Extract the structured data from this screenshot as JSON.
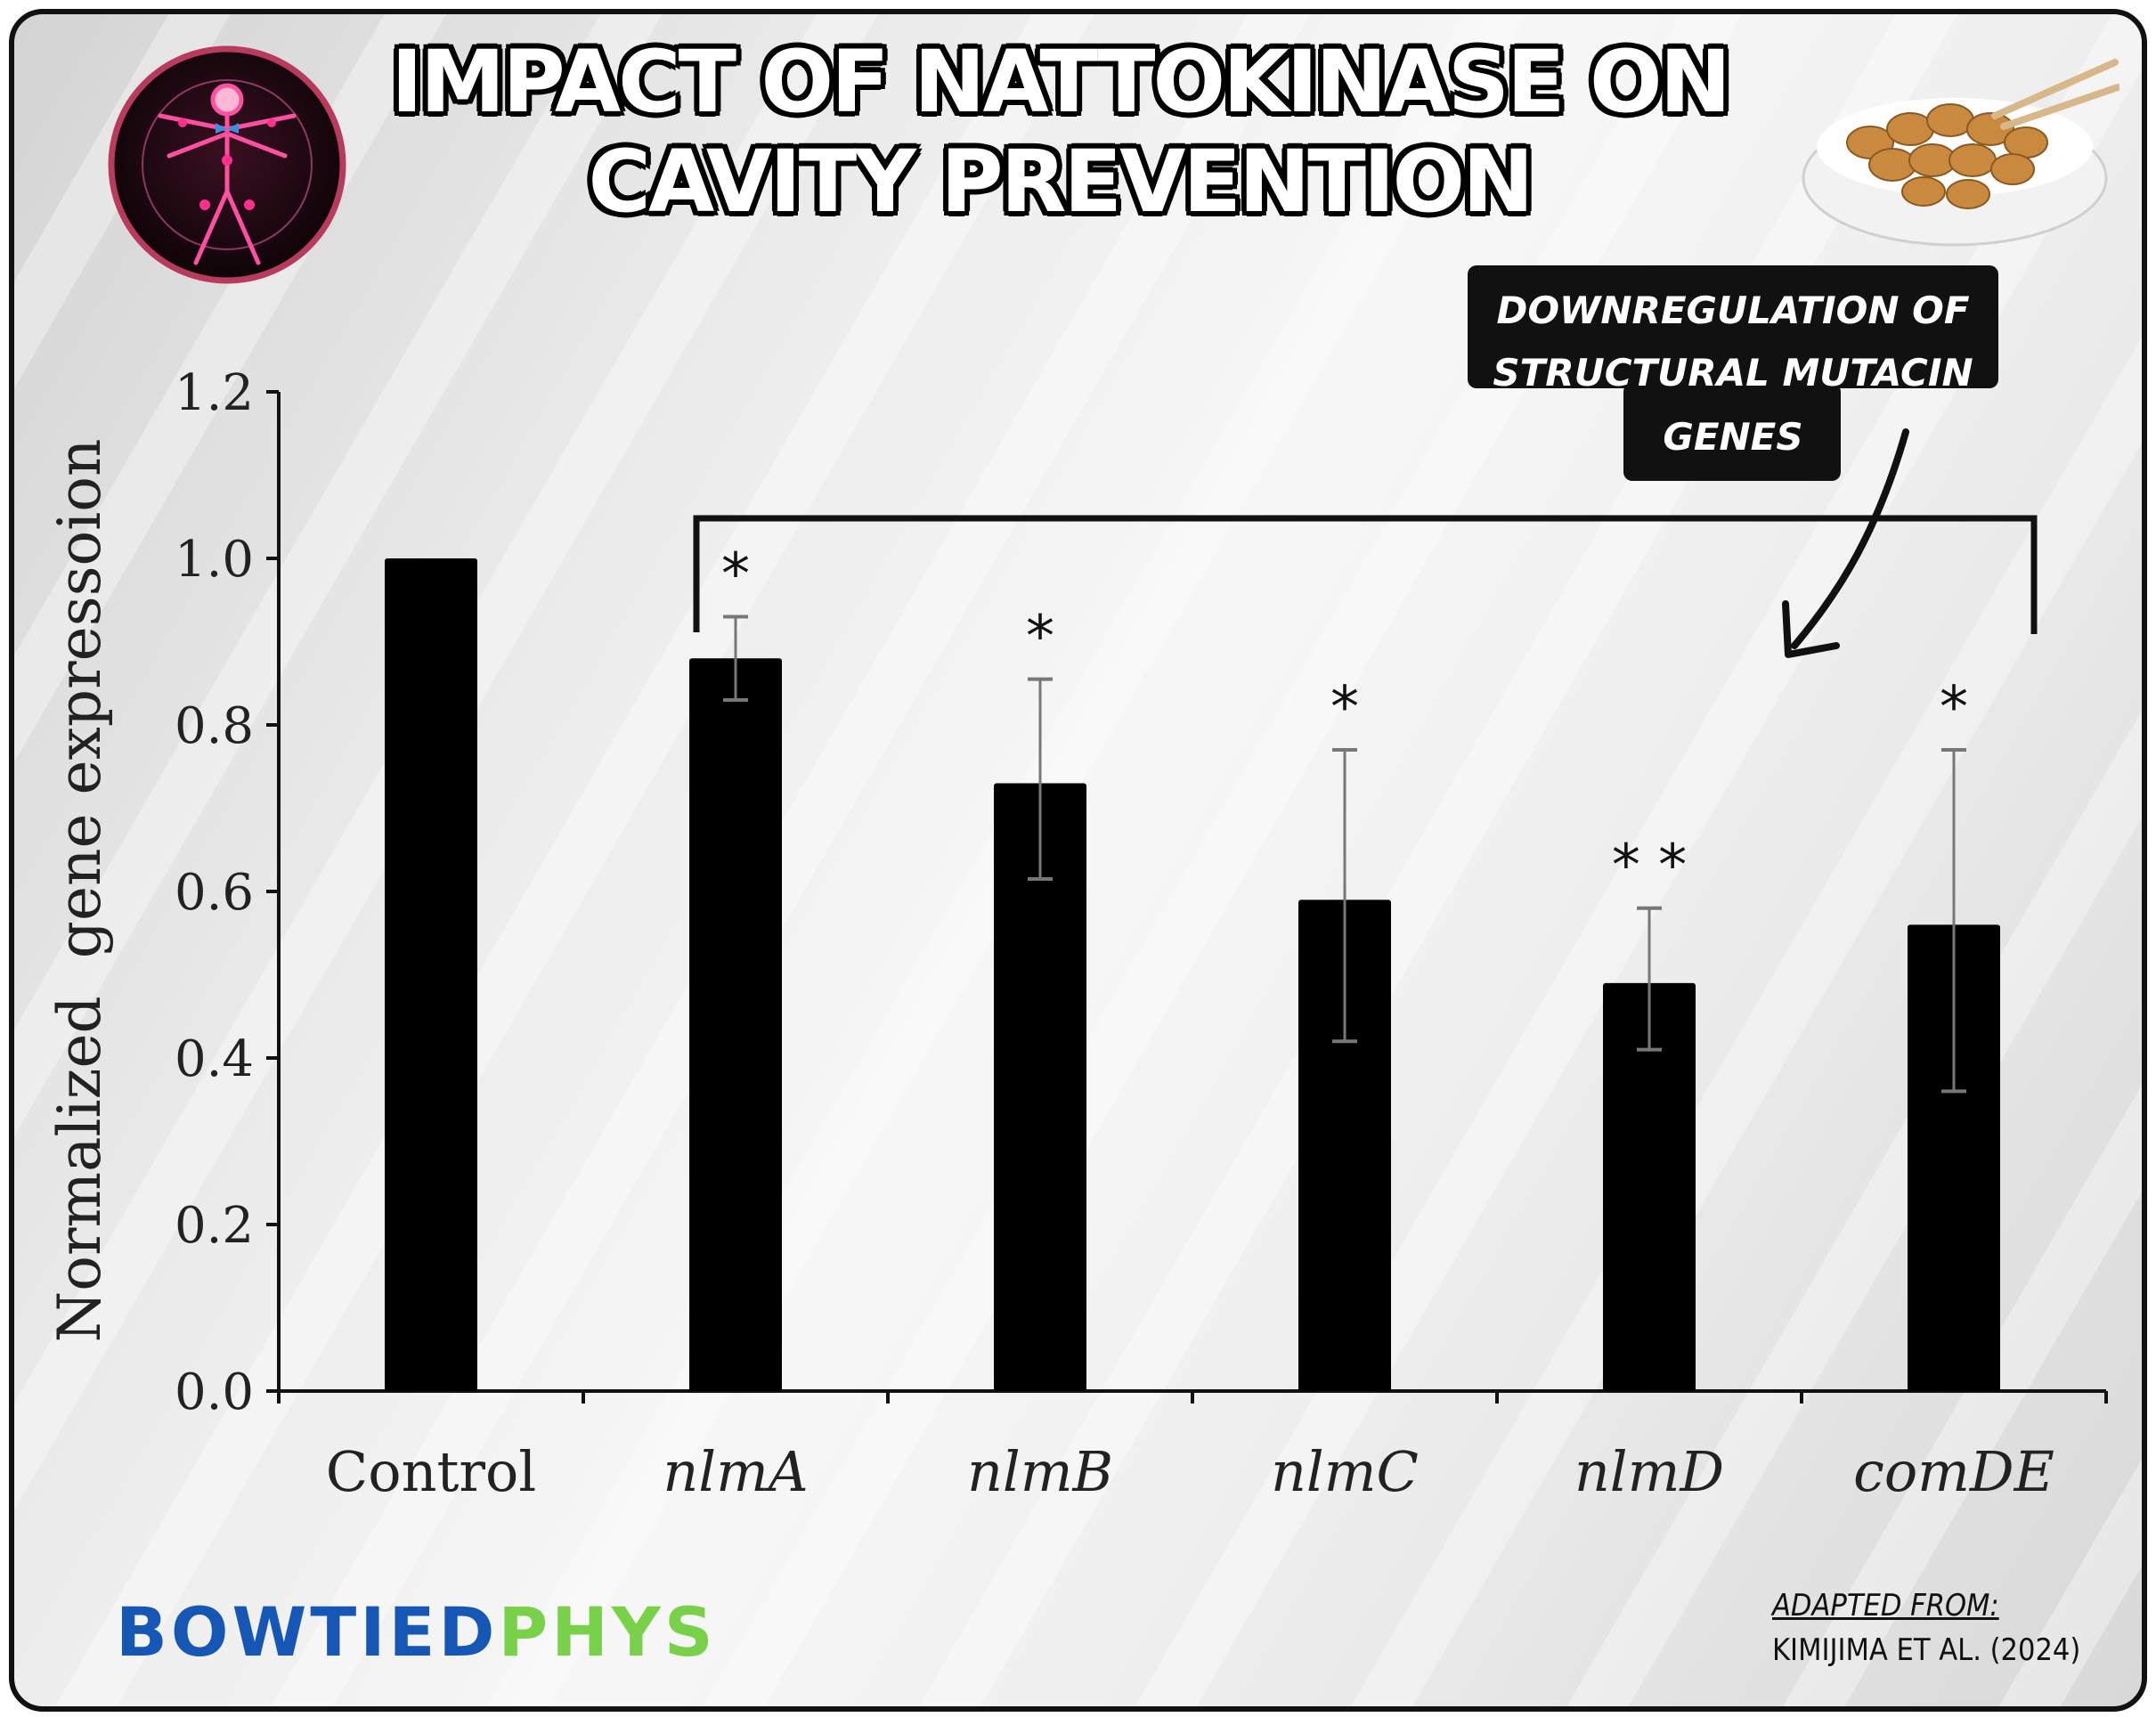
{
  "header": {
    "title_line1": "IMPACT OF NATTOKINASE ON",
    "title_line2": "CAVITY PREVENTION"
  },
  "callout": {
    "line1": "DOWNREGULATION OF",
    "line2": "STRUCTURAL MUTACIN",
    "line3": "GENES"
  },
  "brand": {
    "part1": "BOWTIED",
    "part2": "PHYS"
  },
  "source": {
    "label": "ADAPTED FROM:",
    "citation": "KIMIJIMA ET AL. (2024)"
  },
  "chart_data": {
    "type": "bar",
    "ylabel": "Normalized  gene expressoion",
    "xlabel": "",
    "ylim": [
      0,
      1.2
    ],
    "yticks": [
      "0.0",
      "0.2",
      "0.4",
      "0.6",
      "0.8",
      "1.0",
      "1.2"
    ],
    "categories": [
      "Control",
      "nlmA",
      "nlmB",
      "nlmC",
      "nlmD",
      "comDE"
    ],
    "values": [
      1.0,
      0.88,
      0.73,
      0.59,
      0.49,
      0.56
    ],
    "error_upper": [
      1.0,
      0.93,
      0.855,
      0.77,
      0.58,
      0.77
    ],
    "error_lower": [
      1.0,
      0.83,
      0.615,
      0.42,
      0.41,
      0.36
    ],
    "significance": [
      "",
      "*",
      "*",
      "*",
      "* *",
      "*"
    ],
    "bar_color": "#000000"
  }
}
